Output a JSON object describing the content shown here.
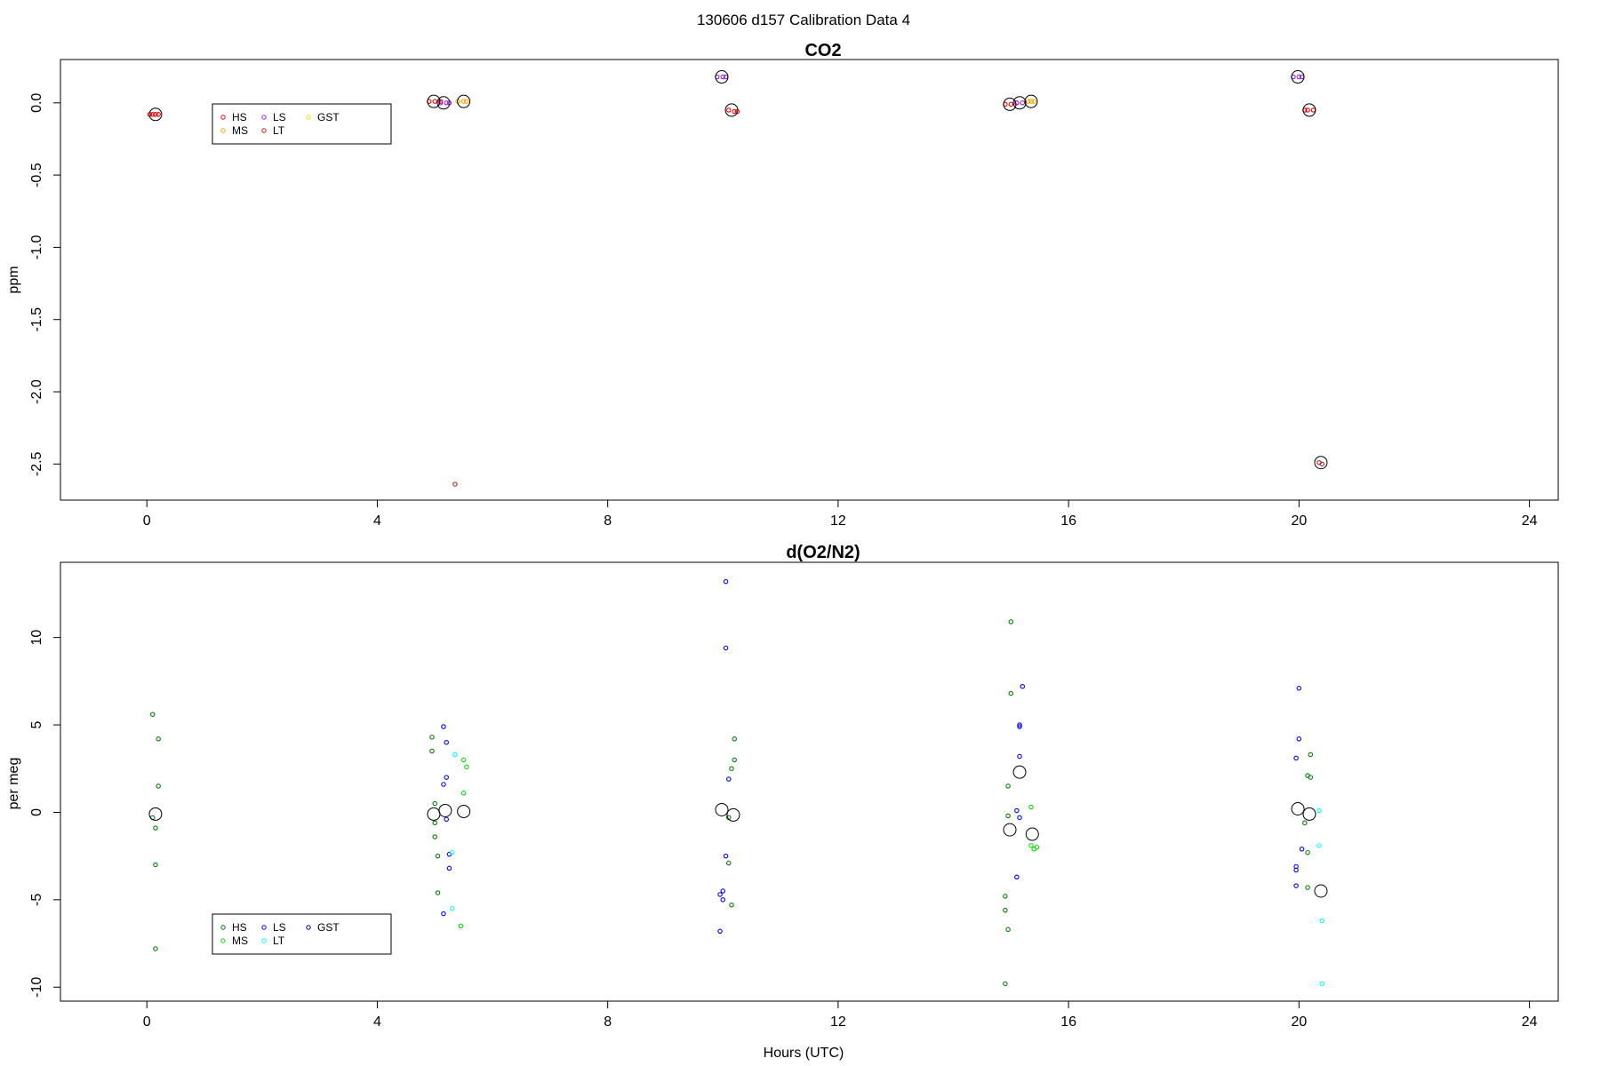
{
  "suptitle": "130606   d157   Calibration Data 4",
  "chart_data": [
    {
      "type": "scatter",
      "title": "CO2",
      "xlabel": "",
      "ylabel": "ppm",
      "xlim": [
        -1.5,
        24.5
      ],
      "ylim": [
        -2.75,
        0.3
      ],
      "xticks": [
        0,
        4,
        8,
        12,
        16,
        20,
        24
      ],
      "xtick_labels": [
        "0",
        "4",
        "8",
        "12",
        "16",
        "20",
        "24"
      ],
      "yticks": [
        0.0,
        -0.5,
        -1.0,
        -1.5,
        -2.0,
        -2.5
      ],
      "ytick_labels": [
        "0.0",
        "-0.5",
        "-1.0",
        "-1.5",
        "-2.0",
        "-2.5"
      ],
      "legend": {
        "placement": "top-left",
        "entries": [
          {
            "label": "HS",
            "color": "#ff0000"
          },
          {
            "label": "LS",
            "color": "#a020f0"
          },
          {
            "label": "GST",
            "color": "#ffd700"
          },
          {
            "label": "MS",
            "color": "#ffa500"
          },
          {
            "label": "LT",
            "color": "#b22222"
          }
        ]
      },
      "series": [
        {
          "name": "HS",
          "color": "#ff0000",
          "points": [
            [
              0.05,
              -0.08
            ],
            [
              0.1,
              -0.08
            ],
            [
              0.15,
              -0.08
            ],
            [
              0.2,
              -0.08
            ],
            [
              4.9,
              0.01
            ],
            [
              5.0,
              0.01
            ],
            [
              5.1,
              0.01
            ],
            [
              14.9,
              -0.01
            ],
            [
              15.0,
              -0.01
            ],
            [
              15.1,
              0.0
            ],
            [
              10.1,
              -0.05
            ],
            [
              10.2,
              -0.06
            ],
            [
              10.25,
              -0.06
            ],
            [
              20.1,
              -0.05
            ],
            [
              20.15,
              -0.05
            ],
            [
              20.25,
              -0.05
            ]
          ]
        },
        {
          "name": "LS",
          "color": "#a020f0",
          "points": [
            [
              5.1,
              0.0
            ],
            [
              5.2,
              0.0
            ],
            [
              5.25,
              0.0
            ],
            [
              9.9,
              0.18
            ],
            [
              10.0,
              0.18
            ],
            [
              10.05,
              0.18
            ],
            [
              15.1,
              0.0
            ],
            [
              15.2,
              0.0
            ],
            [
              19.9,
              0.18
            ],
            [
              20.0,
              0.18
            ],
            [
              20.05,
              0.18
            ]
          ]
        },
        {
          "name": "MS",
          "color": "#ffa500",
          "points": [
            [
              5.4,
              0.01
            ],
            [
              5.5,
              0.01
            ],
            [
              5.55,
              0.01
            ],
            [
              15.3,
              0.01
            ],
            [
              15.35,
              0.01
            ],
            [
              15.4,
              0.01
            ]
          ]
        },
        {
          "name": "LT",
          "color": "#b22222",
          "points": [
            [
              5.35,
              -2.64
            ],
            [
              20.35,
              -2.49
            ],
            [
              20.4,
              -2.5
            ]
          ]
        },
        {
          "name": "mean",
          "color": "#000000",
          "marker": "open-circle-large",
          "points": [
            [
              0.15,
              -0.08
            ],
            [
              4.98,
              0.01
            ],
            [
              5.15,
              0.0
            ],
            [
              5.5,
              0.01
            ],
            [
              9.98,
              0.18
            ],
            [
              10.15,
              -0.05
            ],
            [
              14.98,
              -0.01
            ],
            [
              15.15,
              0.0
            ],
            [
              15.35,
              0.01
            ],
            [
              19.98,
              0.18
            ],
            [
              20.18,
              -0.05
            ],
            [
              20.38,
              -2.49
            ]
          ]
        }
      ]
    },
    {
      "type": "scatter",
      "title": "d(O2/N2)",
      "xlabel": "Hours (UTC)",
      "ylabel": "per meg",
      "xlim": [
        -1.5,
        24.5
      ],
      "ylim": [
        -10.8,
        14.3
      ],
      "xticks": [
        0,
        4,
        8,
        12,
        16,
        20,
        24
      ],
      "xtick_labels": [
        "0",
        "4",
        "8",
        "12",
        "16",
        "20",
        "24"
      ],
      "yticks": [
        10,
        5,
        0,
        -5,
        -10
      ],
      "ytick_labels": [
        "10",
        "5",
        "0",
        "-5",
        "-10"
      ],
      "legend": {
        "placement": "bottom-left",
        "entries": [
          {
            "label": "HS",
            "color": "#008000"
          },
          {
            "label": "LS",
            "color": "#0000ff"
          },
          {
            "label": "GST",
            "color": "#00008b"
          },
          {
            "label": "MS",
            "color": "#00dd00"
          },
          {
            "label": "LT",
            "color": "#00ffff"
          }
        ]
      },
      "series": [
        {
          "name": "HS",
          "color": "#008000",
          "points": [
            [
              0.1,
              5.6
            ],
            [
              0.2,
              4.2
            ],
            [
              0.2,
              1.5
            ],
            [
              0.1,
              -0.3
            ],
            [
              0.15,
              -0.9
            ],
            [
              0.15,
              -3.0
            ],
            [
              0.15,
              -7.8
            ],
            [
              4.95,
              4.3
            ],
            [
              4.95,
              3.5
            ],
            [
              5.0,
              0.5
            ],
            [
              5.0,
              -0.6
            ],
            [
              5.0,
              -1.4
            ],
            [
              5.05,
              -2.5
            ],
            [
              5.05,
              -4.6
            ],
            [
              10.2,
              4.2
            ],
            [
              10.2,
              3.0
            ],
            [
              10.15,
              2.5
            ],
            [
              10.1,
              -0.3
            ],
            [
              10.1,
              -2.9
            ],
            [
              10.15,
              -5.3
            ],
            [
              15.0,
              10.9
            ],
            [
              15.0,
              6.8
            ],
            [
              14.95,
              1.5
            ],
            [
              14.95,
              -0.2
            ],
            [
              14.9,
              -4.8
            ],
            [
              14.9,
              -5.6
            ],
            [
              14.95,
              -6.7
            ],
            [
              14.9,
              -9.8
            ],
            [
              20.2,
              3.3
            ],
            [
              20.15,
              2.1
            ],
            [
              20.2,
              2.0
            ],
            [
              20.1,
              -0.6
            ],
            [
              20.15,
              -2.3
            ],
            [
              20.15,
              -4.3
            ]
          ]
        },
        {
          "name": "LS",
          "color": "#0000ff",
          "points": [
            [
              5.15,
              4.9
            ],
            [
              5.2,
              4.0
            ],
            [
              5.2,
              2.0
            ],
            [
              5.15,
              1.6
            ],
            [
              5.2,
              -0.4
            ],
            [
              5.25,
              -2.4
            ],
            [
              5.25,
              -3.2
            ],
            [
              5.15,
              -5.8
            ],
            [
              10.05,
              13.2
            ],
            [
              10.05,
              9.4
            ],
            [
              10.1,
              1.9
            ],
            [
              10.05,
              -2.5
            ],
            [
              10.0,
              -4.5
            ],
            [
              9.95,
              -4.7
            ],
            [
              10.0,
              -5.0
            ],
            [
              9.95,
              -6.8
            ],
            [
              15.2,
              7.2
            ],
            [
              15.15,
              5.0
            ],
            [
              15.15,
              4.9
            ],
            [
              15.15,
              3.2
            ],
            [
              15.1,
              0.1
            ],
            [
              15.15,
              -0.3
            ],
            [
              15.1,
              -3.7
            ],
            [
              20.0,
              7.1
            ],
            [
              20.0,
              4.2
            ],
            [
              19.95,
              3.1
            ],
            [
              20.05,
              -2.1
            ],
            [
              19.95,
              -3.1
            ],
            [
              19.95,
              -3.3
            ],
            [
              19.95,
              -4.2
            ]
          ]
        },
        {
          "name": "MS",
          "color": "#00dd00",
          "points": [
            [
              5.5,
              3.0
            ],
            [
              5.55,
              2.6
            ],
            [
              5.5,
              1.1
            ],
            [
              5.45,
              -6.5
            ],
            [
              15.35,
              0.3
            ],
            [
              15.35,
              -1.9
            ],
            [
              15.4,
              -2.1
            ],
            [
              15.45,
              -2.0
            ]
          ]
        },
        {
          "name": "LT",
          "color": "#00ffff",
          "points": [
            [
              5.35,
              3.3
            ],
            [
              5.3,
              -2.3
            ],
            [
              5.3,
              -5.5
            ],
            [
              20.35,
              0.1
            ],
            [
              20.35,
              -1.9
            ],
            [
              20.4,
              -6.2
            ],
            [
              20.4,
              -9.8
            ]
          ]
        },
        {
          "name": "mean",
          "color": "#000000",
          "marker": "open-circle-large",
          "points": [
            [
              0.15,
              -0.1
            ],
            [
              4.98,
              -0.1
            ],
            [
              5.18,
              0.1
            ],
            [
              5.5,
              0.05
            ],
            [
              9.98,
              0.15
            ],
            [
              10.18,
              -0.15
            ],
            [
              14.98,
              -1.0
            ],
            [
              15.15,
              2.3
            ],
            [
              15.37,
              -1.25
            ],
            [
              19.98,
              0.2
            ],
            [
              20.18,
              -0.1
            ],
            [
              20.38,
              -4.5
            ]
          ]
        }
      ]
    }
  ]
}
